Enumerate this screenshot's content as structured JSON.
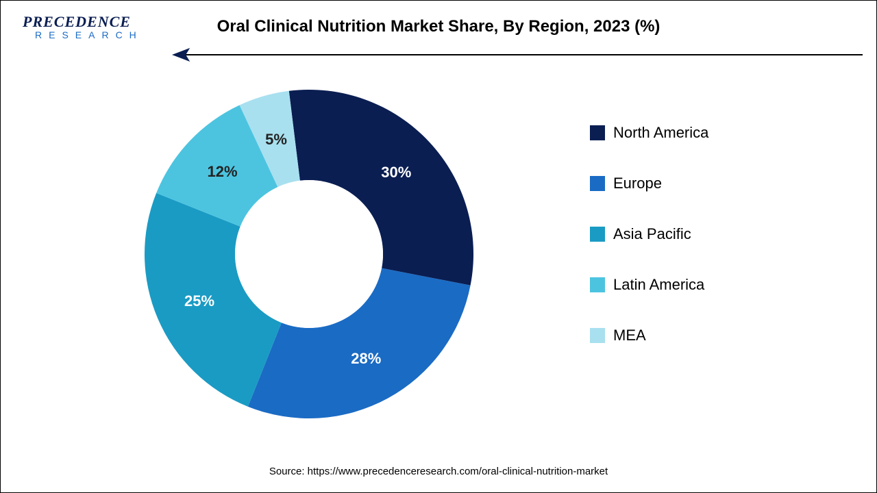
{
  "logo": {
    "line1": "PRECEDENCE",
    "line2": "RESEARCH",
    "color1": "#0a1e52",
    "color2": "#1a6bc4",
    "fontsize1": 22,
    "fontsize2": 14
  },
  "title": {
    "text": "Oral Clinical Nutrition Market Share, By Region, 2023 (%)",
    "fontsize": 24,
    "color": "#000000"
  },
  "arrow": {
    "line_color": "#000000",
    "head_color": "#0a1e52"
  },
  "chart": {
    "type": "donut",
    "inner_radius_ratio": 0.45,
    "start_angle_deg": -7,
    "direction": "clockwise",
    "background_color": "#ffffff",
    "label_fontsize": 22,
    "label_color_light": "#ffffff",
    "label_color_dark": "#222222",
    "slices": [
      {
        "label": "North America",
        "value": 30,
        "display": "30%",
        "color": "#0a1e52",
        "label_color": "#ffffff"
      },
      {
        "label": "Europe",
        "value": 28,
        "display": "28%",
        "color": "#1a6bc4",
        "label_color": "#ffffff"
      },
      {
        "label": "Asia Pacific",
        "value": 25,
        "display": "25%",
        "color": "#1a9bc4",
        "label_color": "#ffffff"
      },
      {
        "label": "Latin America",
        "value": 12,
        "display": "12%",
        "color": "#4cc4e0",
        "label_color": "#222222"
      },
      {
        "label": "MEA",
        "value": 5,
        "display": "5%",
        "color": "#a8e0ef",
        "label_color": "#222222"
      }
    ]
  },
  "legend": {
    "fontsize": 22,
    "color": "#000000",
    "swatch_size": 22
  },
  "source": {
    "text": "Source: https://www.precedenceresearch.com/oral-clinical-nutrition-market",
    "fontsize": 15,
    "color": "#000000"
  }
}
